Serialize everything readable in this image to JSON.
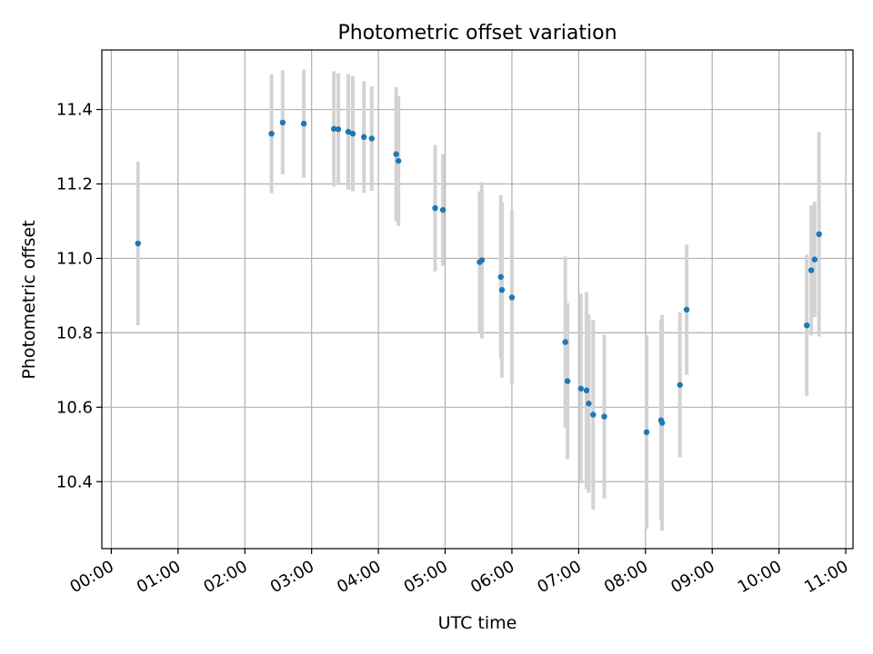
{
  "chart_data": {
    "type": "scatter",
    "title": "Photometric offset variation",
    "xlabel": "UTC time",
    "ylabel": "Photometric offset",
    "xlim": [
      "00:00",
      "11:00"
    ],
    "ylim": [
      10.22,
      11.56
    ],
    "x_ticks": [
      "00:00",
      "01:00",
      "02:00",
      "03:00",
      "04:00",
      "05:00",
      "06:00",
      "07:00",
      "08:00",
      "09:00",
      "10:00",
      "11:00"
    ],
    "y_ticks": [
      "10.4",
      "10.6",
      "10.8",
      "11.0",
      "11.2",
      "11.4"
    ],
    "grid": true,
    "colors": {
      "points": "#1f77b4",
      "errorbars": "#d3d3d3",
      "grid": "#b0b0b0"
    },
    "points": [
      {
        "x": "00:24",
        "y": 11.04,
        "err": 0.22
      },
      {
        "x": "02:24",
        "y": 11.335,
        "err": 0.16
      },
      {
        "x": "02:34",
        "y": 11.365,
        "err": 0.14
      },
      {
        "x": "02:53",
        "y": 11.362,
        "err": 0.145
      },
      {
        "x": "03:20",
        "y": 11.348,
        "err": 0.155
      },
      {
        "x": "03:24",
        "y": 11.347,
        "err": 0.15
      },
      {
        "x": "03:33",
        "y": 11.34,
        "err": 0.155
      },
      {
        "x": "03:37",
        "y": 11.335,
        "err": 0.155
      },
      {
        "x": "03:47",
        "y": 11.326,
        "err": 0.15
      },
      {
        "x": "03:54",
        "y": 11.322,
        "err": 0.14
      },
      {
        "x": "04:16",
        "y": 11.28,
        "err": 0.18
      },
      {
        "x": "04:18",
        "y": 11.262,
        "err": 0.175
      },
      {
        "x": "04:51",
        "y": 11.135,
        "err": 0.17
      },
      {
        "x": "04:58",
        "y": 11.13,
        "err": 0.15
      },
      {
        "x": "05:31",
        "y": 10.99,
        "err": 0.19
      },
      {
        "x": "05:33",
        "y": 10.995,
        "err": 0.21
      },
      {
        "x": "05:50",
        "y": 10.95,
        "err": 0.22
      },
      {
        "x": "05:51",
        "y": 10.915,
        "err": 0.235
      },
      {
        "x": "06:00",
        "y": 10.895,
        "err": 0.235
      },
      {
        "x": "06:48",
        "y": 10.775,
        "err": 0.23
      },
      {
        "x": "06:50",
        "y": 10.67,
        "err": 0.21
      },
      {
        "x": "07:02",
        "y": 10.65,
        "err": 0.255
      },
      {
        "x": "07:07",
        "y": 10.645,
        "err": 0.265
      },
      {
        "x": "07:09",
        "y": 10.61,
        "err": 0.24
      },
      {
        "x": "07:13",
        "y": 10.58,
        "err": 0.255
      },
      {
        "x": "07:23",
        "y": 10.575,
        "err": 0.22
      },
      {
        "x": "08:01",
        "y": 10.533,
        "err": 0.26
      },
      {
        "x": "08:14",
        "y": 10.565,
        "err": 0.27
      },
      {
        "x": "08:15",
        "y": 10.558,
        "err": 0.29
      },
      {
        "x": "08:31",
        "y": 10.66,
        "err": 0.195
      },
      {
        "x": "08:37",
        "y": 10.862,
        "err": 0.175
      },
      {
        "x": "10:25",
        "y": 10.82,
        "err": 0.19
      },
      {
        "x": "10:29",
        "y": 10.968,
        "err": 0.175
      },
      {
        "x": "10:32",
        "y": 10.997,
        "err": 0.155
      },
      {
        "x": "10:36",
        "y": 11.065,
        "err": 0.275
      }
    ]
  }
}
